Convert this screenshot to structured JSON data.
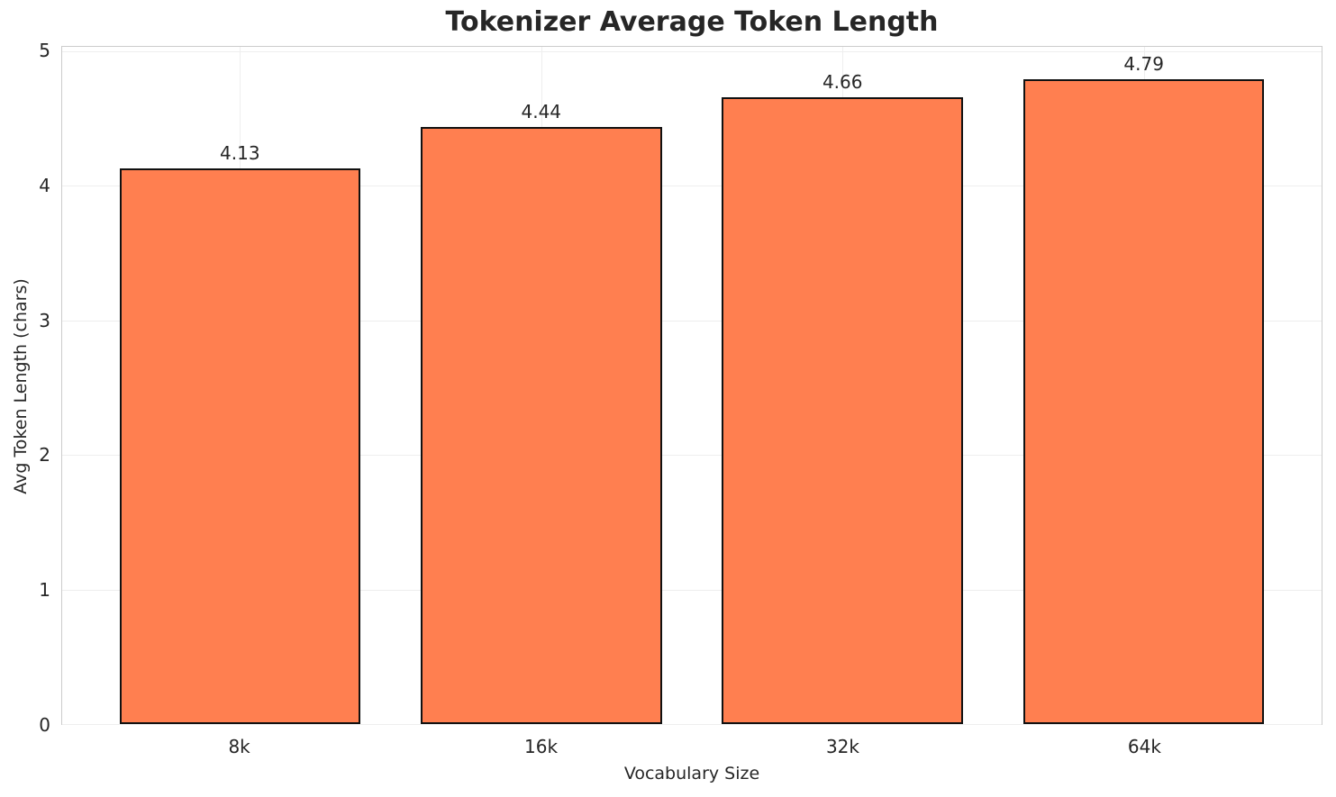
{
  "chart_data": {
    "type": "bar",
    "title": "Tokenizer Average Token Length",
    "xlabel": "Vocabulary Size",
    "ylabel": "Avg Token Length (chars)",
    "categories": [
      "8k",
      "16k",
      "32k",
      "64k"
    ],
    "values": [
      4.13,
      4.44,
      4.66,
      4.79
    ],
    "value_labels": [
      "4.13",
      "4.44",
      "4.66",
      "4.79"
    ],
    "ylim": [
      0,
      5
    ],
    "yticks": [
      0,
      1,
      2,
      3,
      4,
      5
    ],
    "grid": true,
    "legend_position": "none",
    "colors": {
      "bar_fill": "#FF7F50",
      "bar_edge": "#111111",
      "grid_line": "#eeeeee",
      "spine": "#cccccc",
      "text": "#262626",
      "background": "#ffffff"
    }
  }
}
